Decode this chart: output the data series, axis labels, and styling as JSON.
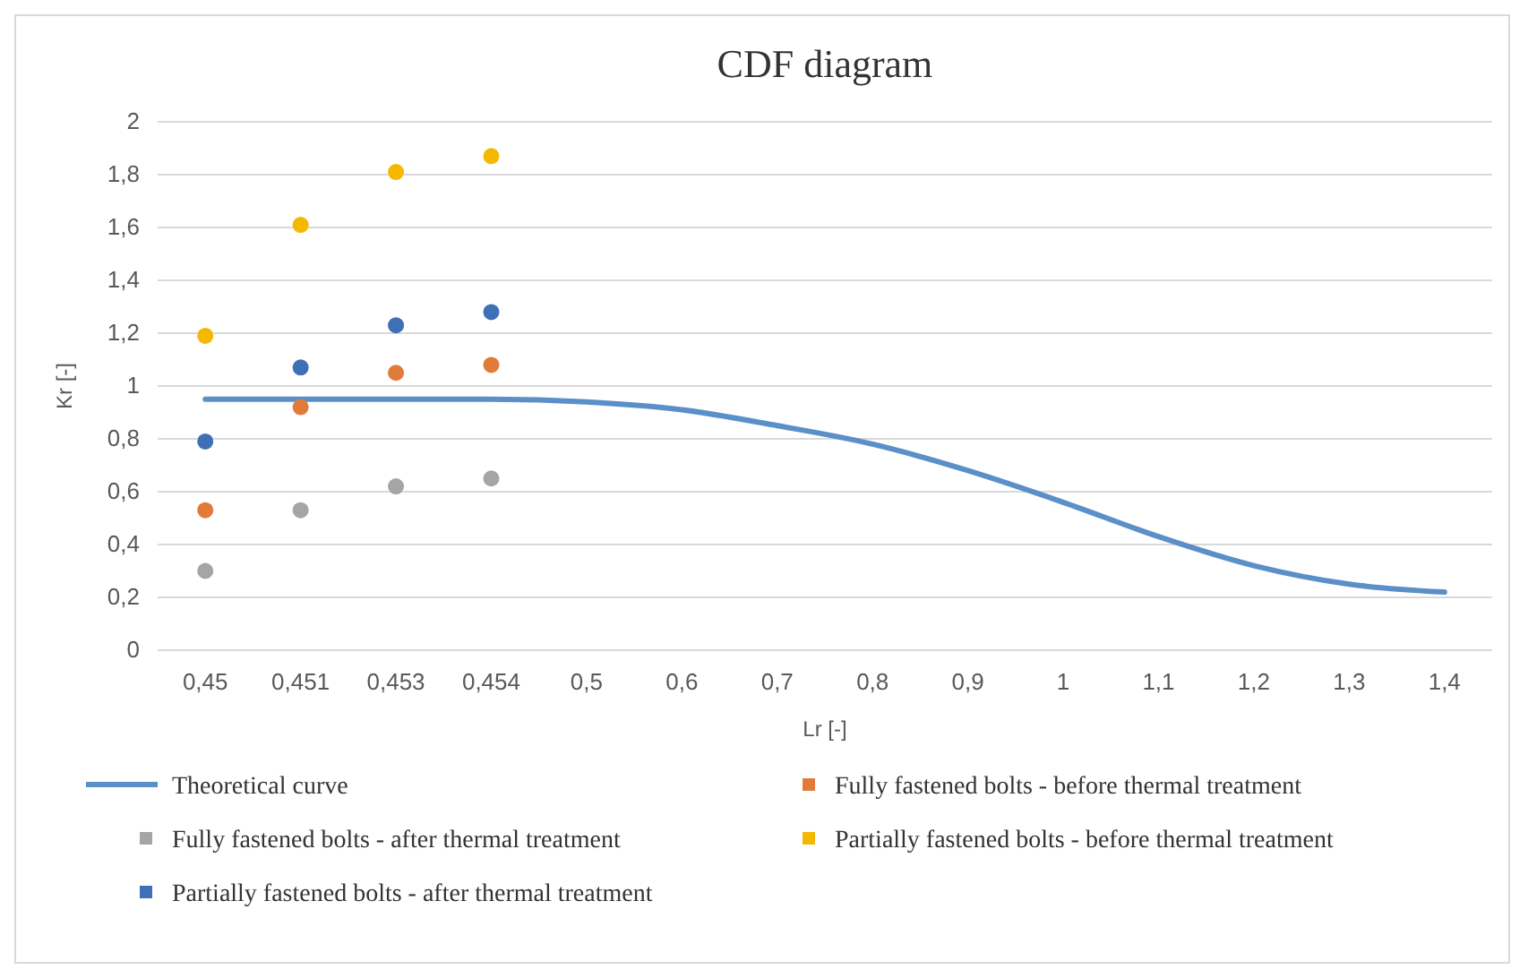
{
  "chart_data": {
    "type": "scatter",
    "title": "CDF diagram",
    "xlabel": "Lr [-]",
    "ylabel": "Kr [-]",
    "categories": [
      "0,45",
      "0,451",
      "0,453",
      "0,454",
      "0,5",
      "0,6",
      "0,7",
      "0,8",
      "0,9",
      "1",
      "1,1",
      "1,2",
      "1,3",
      "1,4"
    ],
    "ylim": [
      0,
      2
    ],
    "yticks": [
      {
        "value": 0,
        "label": "0"
      },
      {
        "value": 0.2,
        "label": "0,2"
      },
      {
        "value": 0.4,
        "label": "0,4"
      },
      {
        "value": 0.6,
        "label": "0,6"
      },
      {
        "value": 0.8,
        "label": "0,8"
      },
      {
        "value": 1,
        "label": "1"
      },
      {
        "value": 1.2,
        "label": "1,2"
      },
      {
        "value": 1.4,
        "label": "1,4"
      },
      {
        "value": 1.6,
        "label": "1,6"
      },
      {
        "value": 1.8,
        "label": "1,8"
      },
      {
        "value": 2,
        "label": "2"
      }
    ],
    "grid": "y",
    "legend": "bottom",
    "marker": "circle",
    "series": [
      {
        "name": "Theoretical curve",
        "type": "line",
        "marker": "none",
        "line_style": "solid",
        "color": "#5b8fc7",
        "values": [
          0.95,
          0.95,
          0.95,
          0.95,
          0.94,
          0.91,
          0.85,
          0.78,
          0.68,
          0.56,
          0.43,
          0.32,
          0.25,
          0.22
        ]
      },
      {
        "name": "Fully fastened bolts - before thermal treatment",
        "color": "#e07b39",
        "values": [
          0.53,
          0.92,
          1.05,
          1.08,
          null,
          null,
          null,
          null,
          null,
          null,
          null,
          null,
          null,
          null
        ]
      },
      {
        "name": "Fully fastened bolts - after thermal treatment",
        "color": "#a5a5a5",
        "values": [
          0.3,
          0.53,
          0.62,
          0.65,
          null,
          null,
          null,
          null,
          null,
          null,
          null,
          null,
          null,
          null
        ]
      },
      {
        "name": "Partially fastened bolts - before thermal treatment",
        "color": "#f5b800",
        "values": [
          1.19,
          1.61,
          1.81,
          1.87,
          null,
          null,
          null,
          null,
          null,
          null,
          null,
          null,
          null,
          null
        ]
      },
      {
        "name": "Partially fastened bolts - after thermal treatment",
        "color": "#3f6fb5",
        "values": [
          0.79,
          1.07,
          1.23,
          1.28,
          null,
          null,
          null,
          null,
          null,
          null,
          null,
          null,
          null,
          null
        ]
      }
    ]
  }
}
